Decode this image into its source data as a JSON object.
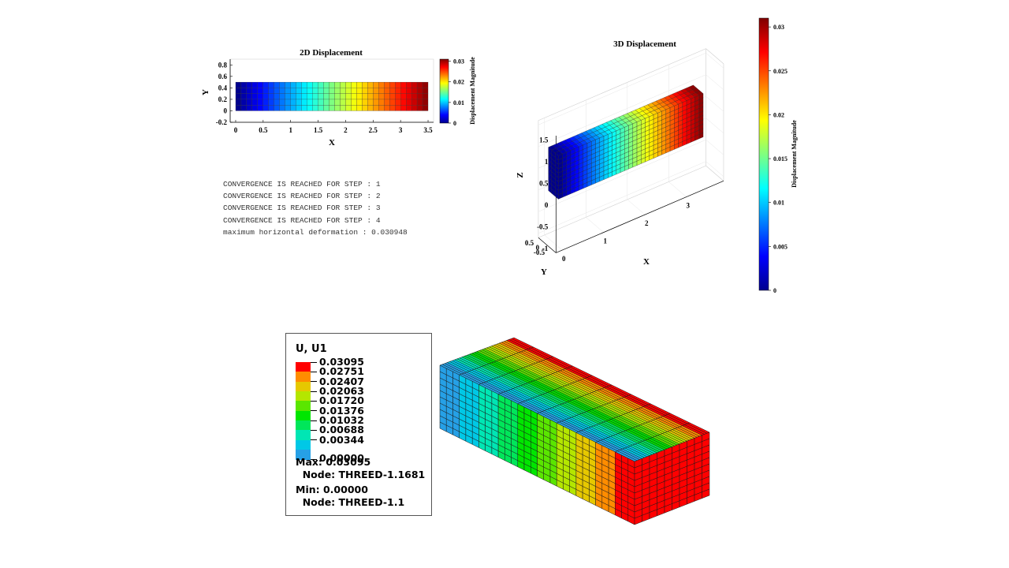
{
  "plot2d": {
    "title": "2D Displacement",
    "xlabel": "X",
    "ylabel": "Y",
    "colorbar_label": "Displacement Magnitude",
    "xticks": [
      "0",
      "0.5",
      "1",
      "1.5",
      "2",
      "2.5",
      "3",
      "3.5"
    ],
    "yticks": [
      "0.8",
      "0.6",
      "0.4",
      "0.2",
      "0",
      "-0.2"
    ],
    "cbar_ticks": [
      "0.03",
      "0.02",
      "0.01",
      "0"
    ]
  },
  "plot3d": {
    "title": "3D Displacement",
    "xlabel": "X",
    "ylabel": "Y",
    "zlabel": "Z",
    "colorbar_label": "Displacement Magnitude",
    "zticks": [
      "1.5",
      "1",
      "0.5",
      "0",
      "-0.5",
      "-1"
    ],
    "xticks": [
      "0",
      "1",
      "2",
      "3"
    ],
    "yticks": [
      "0.5",
      "0",
      "-0.5"
    ],
    "cbar_ticks": [
      "0.03",
      "0.025",
      "0.02",
      "0.015",
      "0.01",
      "0.005",
      "0"
    ]
  },
  "console_lines": [
    "CONVERGENCE IS REACHED FOR STEP : 1",
    "CONVERGENCE IS REACHED FOR STEP : 2",
    "CONVERGENCE IS REACHED FOR STEP : 3",
    "CONVERGENCE IS REACHED FOR STEP : 4",
    "maximum horizontal deformation : 0.030948"
  ],
  "legend": {
    "title": "U, U1",
    "values": [
      "0.03095",
      "0.02751",
      "0.02407",
      "0.02063",
      "0.01720",
      "0.01376",
      "0.01032",
      "0.00688",
      "0.00344",
      "0.00000"
    ],
    "colors": [
      "#ff0000",
      "#ff8c00",
      "#e6c800",
      "#b4e600",
      "#5ae600",
      "#00e600",
      "#00e65a",
      "#00e6b4",
      "#00c8e6",
      "#26a0e6"
    ],
    "max_line": "Max: 0.03095",
    "max_node": "  Node: THREED-1.1681",
    "min_line": "Min: 0.00000",
    "min_node": "  Node: THREED-1.1"
  },
  "chart_data": [
    {
      "type": "heatmap",
      "title": "2D Displacement",
      "xlabel": "X",
      "ylabel": "Y",
      "xlim": [
        -0.1,
        3.6
      ],
      "ylim": [
        -0.2,
        0.9
      ],
      "domain_x": [
        0,
        3.5
      ],
      "domain_y": [
        0,
        0.5
      ],
      "grid_cols": 35,
      "grid_rows": 5,
      "color_min": 0,
      "color_max": 0.031,
      "colormap": "jet",
      "colorbar_label": "Displacement Magnitude"
    },
    {
      "type": "heatmap",
      "title": "3D Displacement",
      "xlabel": "X",
      "ylabel": "Y",
      "zlabel": "Z",
      "domain_x": [
        0,
        3.5
      ],
      "domain_z": [
        0,
        1
      ],
      "color_min": 0,
      "color_max": 0.031,
      "colormap": "jet",
      "colorbar_label": "Displacement Magnitude"
    }
  ]
}
